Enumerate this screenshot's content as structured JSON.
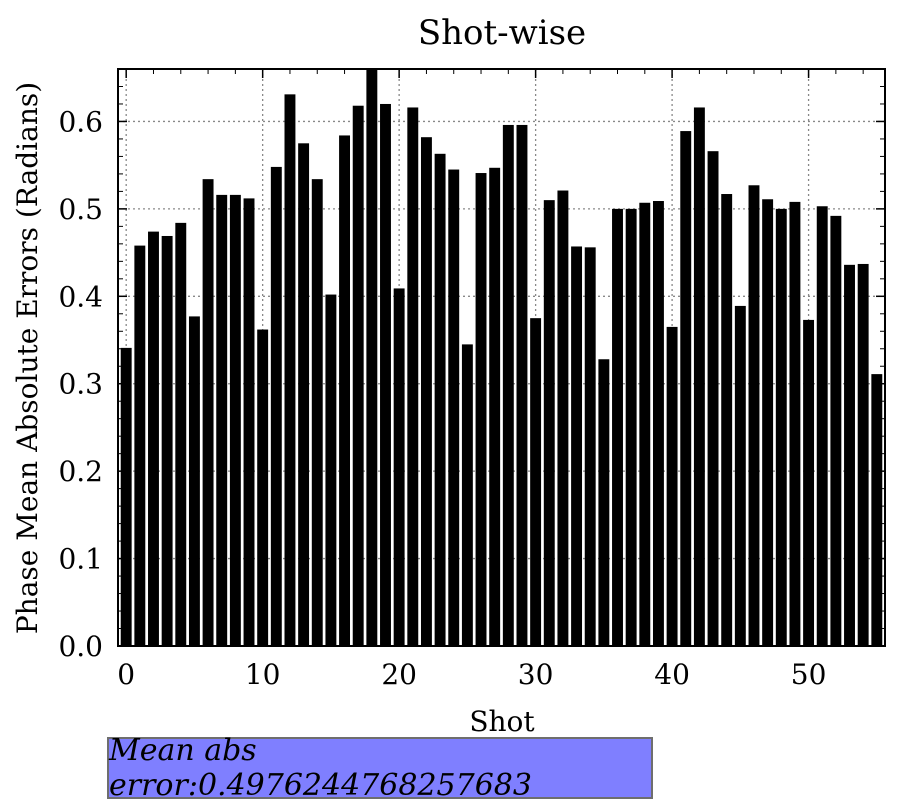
{
  "chart_data": {
    "type": "bar",
    "title": "Shot-wise",
    "xlabel": "Shot",
    "ylabel": "Phase Mean Absolute Errors (Radians)",
    "x": [
      0,
      1,
      2,
      3,
      4,
      5,
      6,
      7,
      8,
      9,
      10,
      11,
      12,
      13,
      14,
      15,
      16,
      17,
      18,
      19,
      20,
      21,
      22,
      23,
      24,
      25,
      26,
      27,
      28,
      29,
      30,
      31,
      32,
      33,
      34,
      35,
      36,
      37,
      38,
      39,
      40,
      41,
      42,
      43,
      44,
      45,
      46,
      47,
      48,
      49,
      50,
      51,
      52,
      53,
      54,
      55
    ],
    "values": [
      0.341,
      0.458,
      0.474,
      0.469,
      0.484,
      0.377,
      0.534,
      0.516,
      0.516,
      0.512,
      0.362,
      0.548,
      0.631,
      0.575,
      0.534,
      0.402,
      0.584,
      0.618,
      0.66,
      0.62,
      0.409,
      0.616,
      0.582,
      0.563,
      0.545,
      0.345,
      0.541,
      0.547,
      0.596,
      0.596,
      0.375,
      0.51,
      0.521,
      0.457,
      0.456,
      0.328,
      0.5,
      0.5,
      0.507,
      0.509,
      0.365,
      0.589,
      0.616,
      0.566,
      0.517,
      0.389,
      0.527,
      0.511,
      0.5,
      0.508,
      0.373,
      0.503,
      0.492,
      0.436,
      0.437,
      0.311
    ],
    "xlim": [
      -0.6,
      55.6
    ],
    "ylim": [
      0,
      0.66
    ],
    "xticks": [
      0,
      10,
      20,
      30,
      40,
      50
    ],
    "yticks": [
      0.0,
      0.1,
      0.2,
      0.3,
      0.4,
      0.5,
      0.6
    ],
    "yticklabels": [
      "0.0",
      "0.1",
      "0.2",
      "0.3",
      "0.4",
      "0.5",
      "0.6"
    ],
    "grid": true,
    "bar_color": "#000000",
    "annotation": "Mean abs error:0.4976244768257683",
    "annotation_bg": "#7f7fff"
  }
}
